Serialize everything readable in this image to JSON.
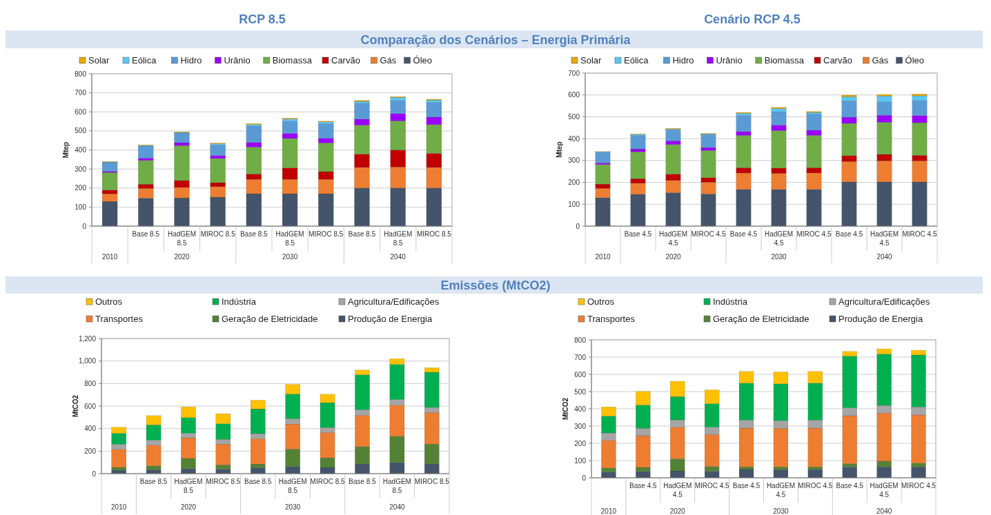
{
  "chart_data": [
    {
      "type": "bar",
      "title": "RCP 8.5",
      "subtitle": "Comparação dos Cenários – Energia Primária",
      "ylabel": "Mtep",
      "stacked": true,
      "grid": "y",
      "legend": "top",
      "categories": [
        null,
        "Base 8.5",
        "HadGEM 8.5",
        "MIROC 8.5",
        "Base 8.5",
        "HadGEM 8.5",
        "MIROC 8.5",
        "Base 8.5",
        "HadGEM 8.5",
        "MIROC 8.5"
      ],
      "annotations": [
        "2010",
        "2020",
        "2030",
        "2040"
      ],
      "ylim": [
        0,
        800
      ],
      "yticks": [
        0,
        100,
        200,
        300,
        400,
        500,
        600,
        700,
        800
      ],
      "series": [
        {
          "name": "Óleo",
          "color": "#44546a",
          "values": [
            130,
            147,
            148,
            152,
            170,
            170,
            170,
            200,
            200,
            200
          ]
        },
        {
          "name": "Gás",
          "color": "#ed7d31",
          "values": [
            40,
            51,
            55,
            55,
            76,
            76,
            76,
            108,
            111,
            108
          ]
        },
        {
          "name": "Carvão",
          "color": "#c00000",
          "values": [
            20,
            22,
            37,
            21,
            28,
            60,
            40,
            70,
            89,
            74
          ]
        },
        {
          "name": "Biomassa",
          "color": "#70ad47",
          "values": [
            92,
            125,
            183,
            127,
            141,
            154,
            151,
            152,
            153,
            151
          ]
        },
        {
          "name": "Urânio",
          "color": "#9900ff",
          "values": [
            6,
            12,
            15,
            15,
            25,
            27,
            25,
            32,
            38,
            39
          ]
        },
        {
          "name": "Hidro",
          "color": "#5b9bd5",
          "values": [
            48,
            63,
            50,
            56,
            85,
            65,
            76,
            83,
            69,
            78
          ]
        },
        {
          "name": "Eólica",
          "color": "#5bc8f5",
          "values": [
            1,
            4,
            4,
            6,
            8,
            10,
            9,
            10,
            16,
            12
          ]
        },
        {
          "name": "Solar",
          "color": "#e6a800",
          "values": [
            2,
            3,
            3,
            4,
            5,
            5,
            4,
            5,
            4,
            4
          ]
        }
      ]
    },
    {
      "type": "bar",
      "title": "Cenário RCP 4.5",
      "ylabel": "Mtep",
      "stacked": true,
      "grid": "y",
      "legend": "top",
      "categories": [
        null,
        "Base 4.5",
        "HadGEM 4.5",
        "MIROC 4.5",
        "Base 4.5",
        "HadGEM 4.5",
        "MIROC 4.5",
        "Base 4.5",
        "HadGEM 4.5",
        "MIROC 4.5"
      ],
      "annotations": [
        "2010",
        "2020",
        "2030",
        "2040"
      ],
      "ylim": [
        0,
        700
      ],
      "yticks": [
        0,
        100,
        200,
        300,
        400,
        500,
        600,
        700
      ],
      "series": [
        {
          "name": "Óleo",
          "color": "#44546a",
          "values": [
            130,
            146,
            153,
            147,
            168,
            168,
            168,
            202,
            202,
            202
          ]
        },
        {
          "name": "Gás",
          "color": "#ed7d31",
          "values": [
            43,
            50,
            56,
            54,
            75,
            73,
            75,
            94,
            97,
            97
          ]
        },
        {
          "name": "Carvão",
          "color": "#c00000",
          "values": [
            19,
            21,
            29,
            21,
            24,
            24,
            24,
            26,
            29,
            25
          ]
        },
        {
          "name": "Biomassa",
          "color": "#70ad47",
          "values": [
            90,
            123,
            135,
            124,
            148,
            172,
            148,
            148,
            147,
            149
          ]
        },
        {
          "name": "Urânio",
          "color": "#9900ff",
          "values": [
            7,
            13,
            17,
            13,
            18,
            25,
            24,
            28,
            32,
            33
          ]
        },
        {
          "name": "Hidro",
          "color": "#5b9bd5",
          "values": [
            49,
            62,
            50,
            59,
            73,
            61,
            72,
            75,
            61,
            69
          ]
        },
        {
          "name": "Eólica",
          "color": "#5bc8f5",
          "values": [
            2,
            5,
            4,
            4,
            10,
            15,
            9,
            19,
            27,
            21
          ]
        },
        {
          "name": "Solar",
          "color": "#e6a800",
          "values": [
            1,
            2,
            3,
            2,
            4,
            5,
            4,
            7,
            7,
            8
          ]
        }
      ]
    },
    {
      "type": "bar",
      "title": "Emissões (MtCO2)",
      "ylabel": "MtCO2",
      "stacked": true,
      "grid": "y",
      "legend": "top",
      "categories": [
        null,
        "Base 8.5",
        "HadGEM 8.5",
        "MIROC 8.5",
        "Base 8.5",
        "HadGEM 8.5",
        "MIROC 8.5",
        "Base 8.5",
        "HadGEM 8.5",
        "MIROC 8.5"
      ],
      "annotations": [
        "2010",
        "2020",
        "2030",
        "2040"
      ],
      "ylim": [
        0,
        1200
      ],
      "yticks": [
        0,
        200,
        400,
        600,
        800,
        {
          "value": 1000,
          "label": "1,000"
        },
        {
          "value": 1200,
          "label": "1,200"
        }
      ],
      "series": [
        {
          "name": "Produção de Energia",
          "color": "#44546a",
          "values": [
            30,
            35,
            45,
            38,
            50,
            65,
            55,
            85,
            100,
            85
          ]
        },
        {
          "name": "Geração de Eletricidade",
          "color": "#548235",
          "values": [
            25,
            35,
            90,
            40,
            35,
            153,
            85,
            155,
            232,
            177
          ]
        },
        {
          "name": "Transportes",
          "color": "#ed7d31",
          "values": [
            160,
            182,
            183,
            184,
            225,
            222,
            225,
            278,
            276,
            281
          ]
        },
        {
          "name": "Agricultura/Edificações",
          "color": "#a5a5a5",
          "values": [
            45,
            45,
            42,
            43,
            45,
            48,
            45,
            50,
            50,
            45
          ]
        },
        {
          "name": "Indústria",
          "color": "#00b050",
          "values": [
            98,
            136,
            137,
            138,
            220,
            219,
            220,
            310,
            312,
            312
          ]
        },
        {
          "name": "Outros",
          "color": "#ffc000",
          "values": [
            54,
            82,
            95,
            89,
            77,
            85,
            75,
            42,
            50,
            40
          ]
        }
      ]
    },
    {
      "type": "bar",
      "ylabel": "MtCO2",
      "stacked": true,
      "grid": "y",
      "legend": "top",
      "categories": [
        null,
        "Base 4.5",
        "HadGEM 4.5",
        "MIROC 4.5",
        "Base 4.5",
        "HadGEM 4.5",
        "MIROC 4.5",
        "Base 4.5",
        "HadGEM 4.5",
        "MIROC 4.5"
      ],
      "annotations": [
        "2010",
        "2020",
        "2030",
        "2040"
      ],
      "ylim": [
        0,
        800
      ],
      "yticks": [
        0,
        100,
        200,
        300,
        400,
        500,
        600,
        700,
        800
      ],
      "series": [
        {
          "name": "Produção de Energia",
          "color": "#44546a",
          "values": [
            33,
            37,
            40,
            38,
            48,
            47,
            47,
            62,
            63,
            63
          ]
        },
        {
          "name": "Geração de Eletricidade",
          "color": "#548235",
          "values": [
            24,
            23,
            70,
            28,
            15,
            16,
            16,
            20,
            33,
            22
          ]
        },
        {
          "name": "Transportes",
          "color": "#ed7d31",
          "values": [
            161,
            184,
            183,
            185,
            225,
            224,
            225,
            278,
            279,
            279
          ]
        },
        {
          "name": "Agricultura/Edificações",
          "color": "#a5a5a5",
          "values": [
            42,
            43,
            43,
            43,
            47,
            45,
            47,
            46,
            45,
            47
          ]
        },
        {
          "name": "Indústria",
          "color": "#00b050",
          "values": [
            98,
            135,
            135,
            136,
            214,
            213,
            214,
            300,
            298,
            301
          ]
        },
        {
          "name": "Outros",
          "color": "#ffc000",
          "values": [
            53,
            79,
            89,
            80,
            68,
            69,
            68,
            27,
            30,
            28
          ]
        }
      ]
    }
  ]
}
